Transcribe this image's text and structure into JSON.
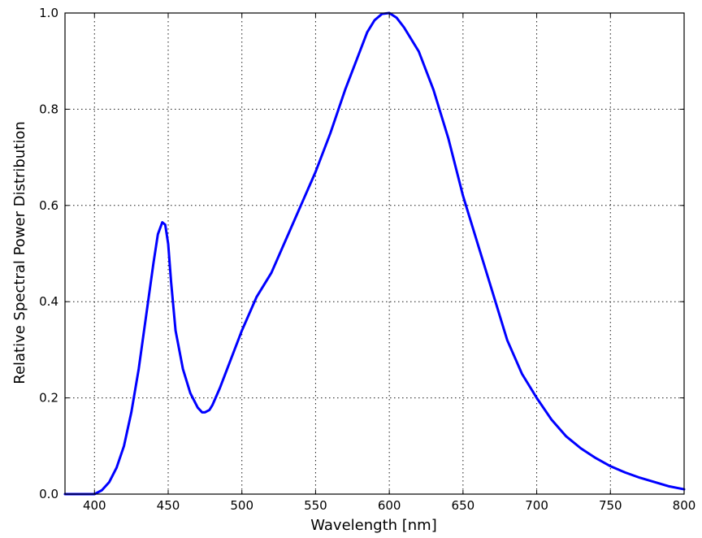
{
  "chart_data": {
    "type": "line",
    "title": "",
    "xlabel": "Wavelength [nm]",
    "ylabel": "Relative Spectral Power Distribution",
    "xlim": [
      380,
      800
    ],
    "ylim": [
      0.0,
      1.0
    ],
    "x_ticks": [
      400,
      450,
      500,
      550,
      600,
      650,
      700,
      750,
      800
    ],
    "x_tick_labels": [
      "400",
      "450",
      "500",
      "550",
      "600",
      "650",
      "700",
      "750",
      "800"
    ],
    "y_ticks": [
      0.0,
      0.2,
      0.4,
      0.6,
      0.8,
      1.0
    ],
    "y_tick_labels": [
      "0.0",
      "0.2",
      "0.4",
      "0.6",
      "0.8",
      "1.0"
    ],
    "grid": true,
    "legend": "none",
    "series": [
      {
        "color": "#0000ff",
        "x": [
          380,
          390,
          400,
          405,
          410,
          415,
          420,
          425,
          430,
          435,
          440,
          443,
          446,
          448,
          450,
          452,
          455,
          460,
          465,
          470,
          473,
          475,
          478,
          480,
          485,
          490,
          495,
          500,
          510,
          520,
          530,
          540,
          550,
          560,
          570,
          580,
          585,
          590,
          595,
          600,
          605,
          610,
          620,
          630,
          640,
          650,
          660,
          670,
          680,
          690,
          700,
          710,
          720,
          730,
          740,
          750,
          760,
          770,
          780,
          790,
          800
        ],
        "y": [
          0.0,
          0.0,
          0.0,
          0.008,
          0.025,
          0.055,
          0.1,
          0.17,
          0.26,
          0.37,
          0.48,
          0.54,
          0.565,
          0.56,
          0.52,
          0.44,
          0.34,
          0.26,
          0.21,
          0.18,
          0.17,
          0.17,
          0.175,
          0.185,
          0.22,
          0.26,
          0.3,
          0.34,
          0.41,
          0.46,
          0.53,
          0.6,
          0.67,
          0.75,
          0.84,
          0.92,
          0.96,
          0.985,
          0.998,
          1.0,
          0.99,
          0.97,
          0.92,
          0.84,
          0.74,
          0.62,
          0.52,
          0.42,
          0.32,
          0.25,
          0.2,
          0.155,
          0.12,
          0.095,
          0.075,
          0.058,
          0.045,
          0.034,
          0.025,
          0.016,
          0.01
        ]
      }
    ]
  }
}
